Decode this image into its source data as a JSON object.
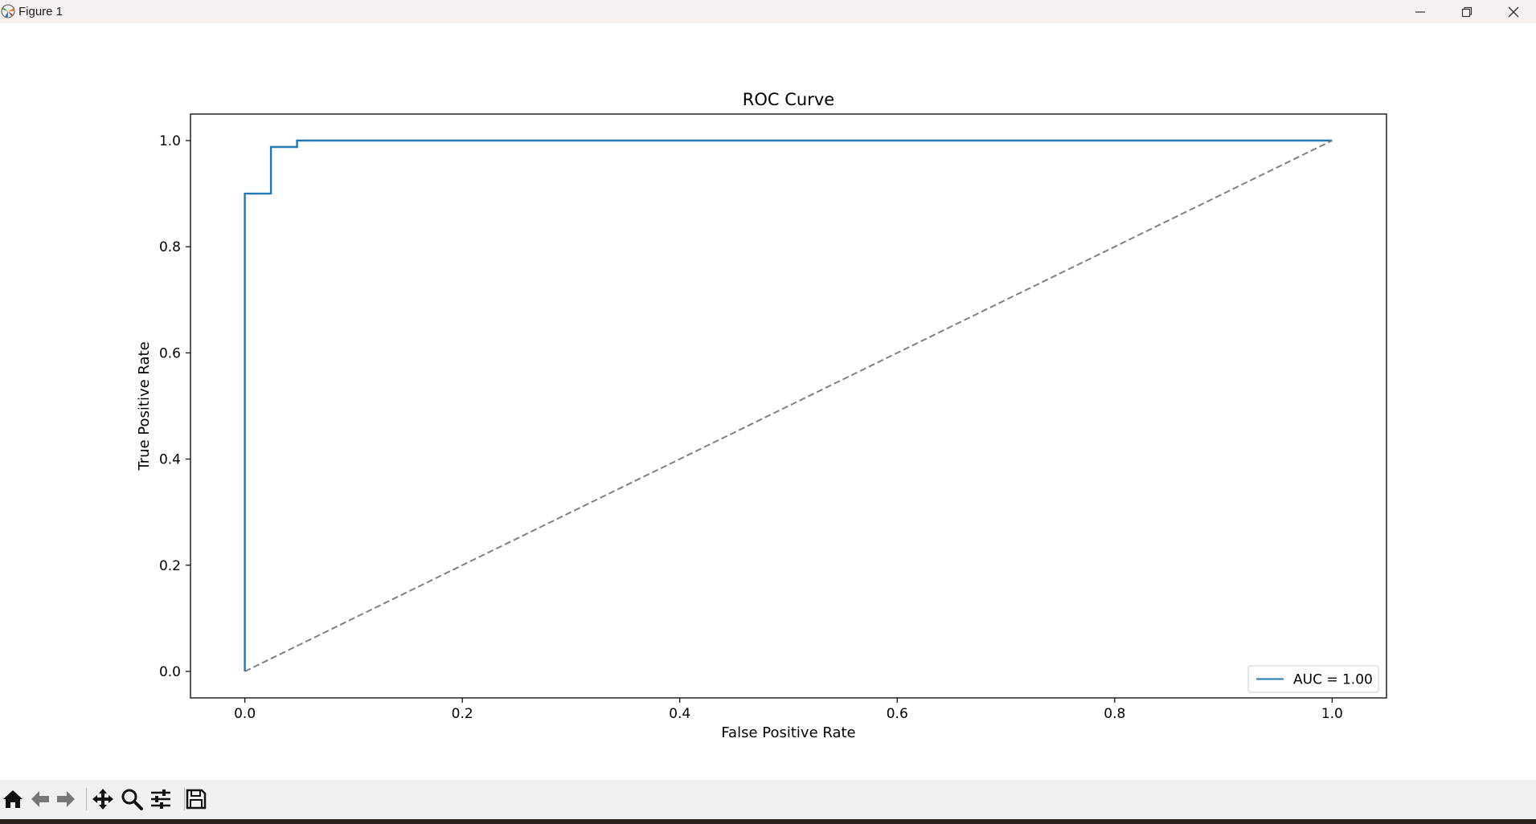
{
  "window": {
    "title": "Figure 1",
    "icons": {
      "app": "matplotlib-icon",
      "minimize": "minimize-icon",
      "maximize": "restore-icon",
      "close": "close-icon"
    }
  },
  "toolbar": {
    "buttons": [
      {
        "name": "home",
        "icon": "home-icon"
      },
      {
        "name": "back",
        "icon": "arrow-left-icon"
      },
      {
        "name": "forward",
        "icon": "arrow-right-icon"
      },
      {
        "name": "pan",
        "icon": "move-icon"
      },
      {
        "name": "zoom",
        "icon": "magnifier-icon"
      },
      {
        "name": "configure-subplots",
        "icon": "sliders-icon"
      },
      {
        "name": "save",
        "icon": "floppy-disk-icon"
      }
    ]
  },
  "chart_data": {
    "type": "line",
    "title": "ROC Curve",
    "xlabel": "False Positive Rate",
    "ylabel": "True Positive Rate",
    "xlim": [
      -0.05,
      1.05
    ],
    "ylim": [
      -0.05,
      1.05
    ],
    "xticks": [
      0.0,
      0.2,
      0.4,
      0.6,
      0.8,
      1.0
    ],
    "xtick_labels": [
      "0.0",
      "0.2",
      "0.4",
      "0.6",
      "0.8",
      "1.0"
    ],
    "yticks": [
      0.0,
      0.2,
      0.4,
      0.6,
      0.8,
      1.0
    ],
    "ytick_labels": [
      "0.0",
      "0.2",
      "0.4",
      "0.6",
      "0.8",
      "1.0"
    ],
    "grid": false,
    "legend_position": "lower right",
    "series": [
      {
        "name": "AUC = 1.00",
        "color": "#1f77b4",
        "style": "solid",
        "x": [
          0.0,
          0.0,
          0.024,
          0.024,
          0.048,
          0.048,
          1.0
        ],
        "y": [
          0.0,
          0.9,
          0.9,
          0.988,
          0.988,
          1.0,
          1.0
        ]
      },
      {
        "color": "#808080",
        "style": "dashed",
        "x": [
          0.0,
          1.0
        ],
        "y": [
          0.0,
          1.0
        ]
      }
    ]
  }
}
